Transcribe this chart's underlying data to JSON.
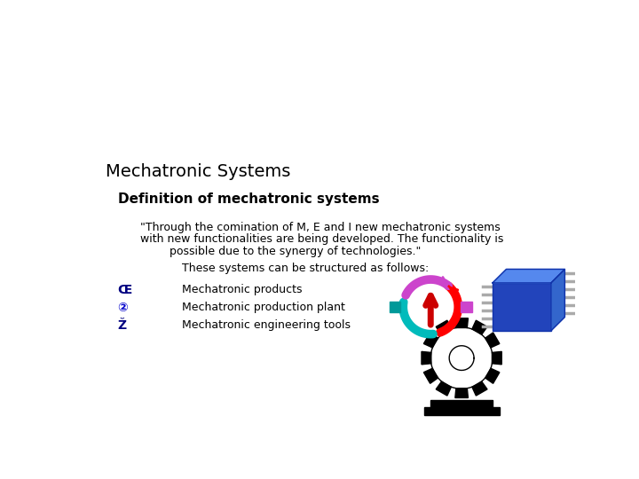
{
  "title": "Mechatronic Systems",
  "subtitle": "Definition of mechatronic systems",
  "quote_line1": "\"Through the comination of M, E and I new mechatronic systems",
  "quote_line2": "with new functionalities are being developed. The functionality is",
  "quote_line3": "possible due to the synergy of technologies.\"",
  "structured_text": "These systems can be structured as follows:",
  "bullet_symbols": [
    "Œ",
    "②",
    "Ž"
  ],
  "bullet_symbol_colors": [
    "#000080",
    "#0000cc",
    "#000080"
  ],
  "bullet_items": [
    "Mechatronic products",
    "Mechatronic production plant",
    "Mechatronic engineering tools"
  ],
  "bg_color": "#ffffff",
  "title_color": "#000000",
  "subtitle_color": "#000000",
  "text_color": "#000000",
  "title_fontsize": 14,
  "subtitle_fontsize": 11,
  "body_fontsize": 9,
  "bullet_fontsize": 9,
  "bullet_symbol_fontsize": 10
}
